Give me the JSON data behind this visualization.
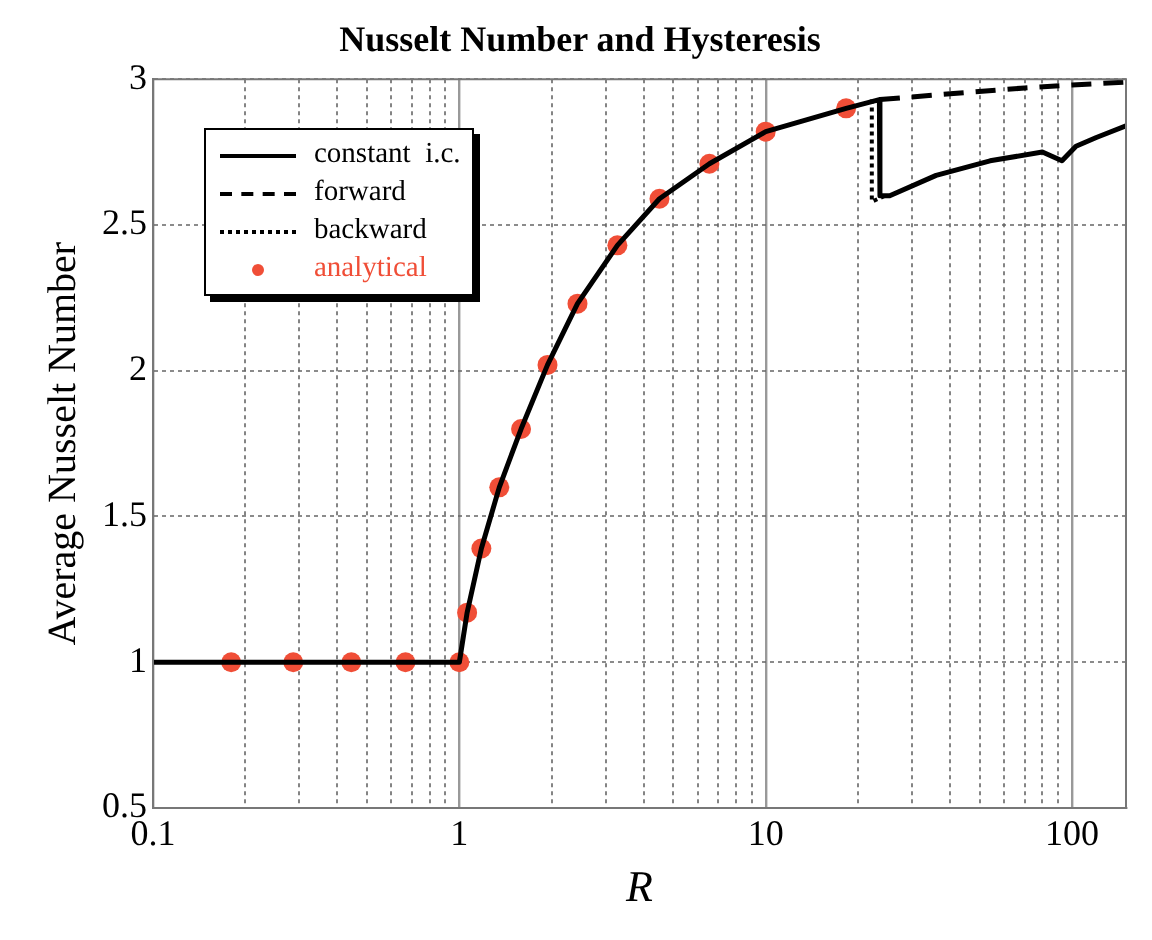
{
  "chart_data": {
    "type": "line",
    "title": "Nusselt Number and Hysteresis",
    "xlabel": "R",
    "ylabel": "Average Nusselt Number",
    "log": "x",
    "grid": true,
    "legend": "top left",
    "xlim": [
      0.1,
      150
    ],
    "ylim": [
      0.5,
      3
    ],
    "xticks": [
      0.1,
      {
        "value": 0.2,
        "label": null
      },
      {
        "value": 0.3,
        "label": null
      },
      {
        "value": 0.4,
        "label": null
      },
      {
        "value": 0.5,
        "label": null
      },
      {
        "value": 0.6,
        "label": null
      },
      {
        "value": 0.7,
        "label": null
      },
      {
        "value": 0.8,
        "label": null
      },
      {
        "value": 0.9,
        "label": null
      },
      1,
      {
        "value": 2,
        "label": null
      },
      {
        "value": 3,
        "label": null
      },
      {
        "value": 4,
        "label": null
      },
      {
        "value": 5,
        "label": null
      },
      {
        "value": 6,
        "label": null
      },
      {
        "value": 7,
        "label": null
      },
      {
        "value": 8,
        "label": null
      },
      {
        "value": 9,
        "label": null
      },
      10,
      {
        "value": 20,
        "label": null
      },
      {
        "value": 30,
        "label": null
      },
      {
        "value": 40,
        "label": null
      },
      {
        "value": 50,
        "label": null
      },
      {
        "value": 60,
        "label": null
      },
      {
        "value": 70,
        "label": null
      },
      {
        "value": 80,
        "label": null
      },
      {
        "value": 90,
        "label": null
      },
      100
    ],
    "yticks": [
      0.5,
      1,
      1.5,
      2,
      2.5,
      3
    ],
    "series": [
      {
        "name": "constant  i.c.",
        "color": "#000000",
        "line_style": "solid",
        "marker": "none",
        "x": [
          0.1,
          1,
          1.06,
          1.18,
          1.35,
          1.59,
          1.94,
          2.43,
          3.28,
          4.5,
          6.55,
          10,
          18.3,
          23.5,
          23.6,
          25.4,
          36,
          54,
          80,
          92.7,
          103,
          120,
          150
        ],
        "values": [
          1,
          1,
          1.17,
          1.39,
          1.6,
          1.8,
          2.02,
          2.23,
          2.43,
          2.59,
          2.71,
          2.82,
          2.9,
          2.93,
          2.6,
          2.6,
          2.67,
          2.72,
          2.75,
          2.72,
          2.77,
          2.8,
          2.84
        ]
      },
      {
        "name": "forward",
        "color": "#000000",
        "line_style": "dashed",
        "marker": "none",
        "x": [
          23.6,
          40,
          70,
          100,
          150
        ],
        "values": [
          2.93,
          2.95,
          2.97,
          2.98,
          2.99
        ]
      },
      {
        "name": "backward",
        "color": "#000000",
        "line_style": "dotted",
        "marker": "none",
        "x": [
          22.2,
          22.2,
          24.5
        ],
        "values": [
          2.93,
          2.58,
          2.6
        ]
      },
      {
        "name": "analytical",
        "type": "scatter",
        "color": "#f04e37",
        "marker": "circle",
        "x": [
          0.18,
          0.287,
          0.444,
          0.667,
          1,
          1.06,
          1.18,
          1.35,
          1.59,
          1.94,
          2.43,
          3.28,
          4.5,
          6.55,
          10,
          18.3
        ],
        "values": [
          1,
          1,
          1,
          1,
          1,
          1.17,
          1.39,
          1.6,
          1.8,
          2.02,
          2.23,
          2.43,
          2.59,
          2.71,
          2.82,
          2.9
        ]
      }
    ]
  }
}
